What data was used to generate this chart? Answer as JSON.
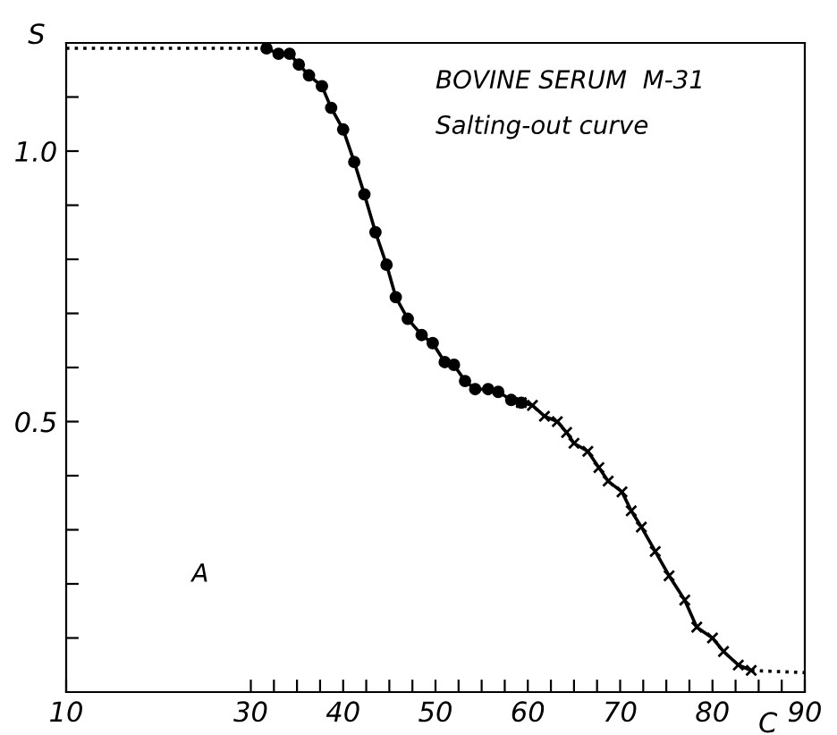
{
  "chart_data": {
    "type": "line",
    "xlabel": "C",
    "ylabel": "S",
    "annotations": [
      "BOVINE SERUM  M-31",
      "Salting-out curve",
      "A"
    ],
    "series": [
      {
        "color": "#000000",
        "marker": "circle",
        "line_style": "solid",
        "x": [
          31.7,
          33,
          34.2,
          35.2,
          36.3,
          37.7,
          38.7,
          40,
          41.2,
          42.3,
          43.5,
          44.7,
          45.7,
          47,
          48.5,
          49.7,
          51,
          52,
          53.2,
          54.3,
          55.7,
          56.8,
          58.2,
          59.3
        ],
        "values": [
          1.19,
          1.18,
          1.18,
          1.16,
          1.14,
          1.12,
          1.08,
          1.04,
          0.98,
          0.92,
          0.85,
          0.79,
          0.73,
          0.69,
          0.66,
          0.645,
          0.61,
          0.605,
          0.575,
          0.56,
          0.56,
          0.555,
          0.54,
          0.535
        ]
      },
      {
        "color": "#000000",
        "marker": "cross",
        "line_style": "solid",
        "x": [
          59.3,
          60.5,
          61.8,
          63.2,
          64.2,
          65,
          66.5,
          67.7,
          68.7,
          70.2,
          71.2,
          72.3,
          73.8,
          75.3,
          77,
          78.3,
          80,
          81.2,
          82.8,
          84.2
        ],
        "values": [
          0.535,
          0.53,
          0.51,
          0.5,
          0.48,
          0.46,
          0.445,
          0.415,
          0.39,
          0.37,
          0.335,
          0.305,
          0.26,
          0.215,
          0.17,
          0.12,
          0.1,
          0.075,
          0.05,
          0.04
        ]
      },
      {
        "color": "#000000",
        "marker": "none",
        "line_style": "dotted",
        "x": [
          10,
          31.7
        ],
        "values": [
          1.19,
          1.19
        ]
      },
      {
        "color": "#000000",
        "marker": "none",
        "line_style": "dotted",
        "x": [
          84.2,
          90
        ],
        "values": [
          0.04,
          0.036
        ]
      }
    ],
    "xlim": [
      10,
      90
    ],
    "ylim": [
      0,
      1.2
    ],
    "xticks": [
      10,
      30,
      {
        "value": 32.5,
        "label": null
      },
      {
        "value": 35,
        "label": null
      },
      {
        "value": 37.5,
        "label": null
      },
      40,
      {
        "value": 42.5,
        "label": null
      },
      {
        "value": 45,
        "label": null
      },
      {
        "value": 47.5,
        "label": null
      },
      50,
      {
        "value": 52.5,
        "label": null
      },
      {
        "value": 55,
        "label": null
      },
      {
        "value": 57.5,
        "label": null
      },
      60,
      {
        "value": 62.5,
        "label": null
      },
      {
        "value": 65,
        "label": null
      },
      {
        "value": 67.5,
        "label": null
      },
      70,
      {
        "value": 72.5,
        "label": null
      },
      {
        "value": 75,
        "label": null
      },
      {
        "value": 77.5,
        "label": null
      },
      80,
      {
        "value": 82.5,
        "label": null
      },
      {
        "value": 85,
        "label": null
      },
      {
        "value": 87.5,
        "label": null
      },
      90
    ],
    "yticks": [
      {
        "value": 0.1,
        "label": null
      },
      {
        "value": 0.2,
        "label": null
      },
      {
        "value": 0.3,
        "label": null
      },
      {
        "value": 0.4,
        "label": null
      },
      0.5,
      {
        "value": 0.6,
        "label": null
      },
      {
        "value": 0.7,
        "label": null
      },
      {
        "value": 0.8,
        "label": null
      },
      {
        "value": 0.9,
        "label": null
      },
      {
        "value": 1.0,
        "label": "1.0"
      },
      {
        "value": 1.1,
        "label": null
      }
    ],
    "grid": false,
    "legend": false
  }
}
